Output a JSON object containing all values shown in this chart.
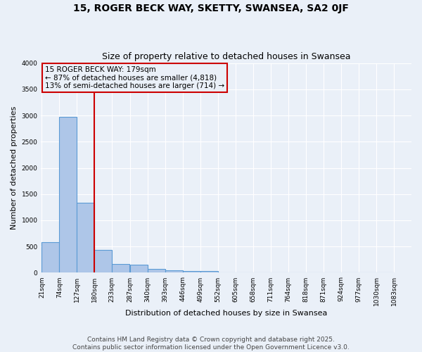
{
  "title": "15, ROGER BECK WAY, SKETTY, SWANSEA, SA2 0JF",
  "subtitle": "Size of property relative to detached houses in Swansea",
  "xlabel": "Distribution of detached houses by size in Swansea",
  "ylabel": "Number of detached properties",
  "bar_values": [
    590,
    2970,
    1340,
    430,
    165,
    155,
    70,
    40,
    30,
    30,
    0,
    0,
    0,
    0,
    0,
    0,
    0,
    0,
    0,
    0
  ],
  "bin_edges": [
    21,
    74,
    127,
    180,
    233,
    287,
    340,
    393,
    446,
    499,
    552,
    605,
    658,
    711,
    764,
    818,
    871,
    924,
    977,
    1030,
    1083
  ],
  "tick_labels": [
    "21sqm",
    "74sqm",
    "127sqm",
    "180sqm",
    "233sqm",
    "287sqm",
    "340sqm",
    "393sqm",
    "446sqm",
    "499sqm",
    "552sqm",
    "605sqm",
    "658sqm",
    "711sqm",
    "764sqm",
    "818sqm",
    "871sqm",
    "924sqm",
    "977sqm",
    "1030sqm",
    "1083sqm"
  ],
  "bar_color": "#aec6e8",
  "bar_edge_color": "#5b9bd5",
  "vline_x": 180,
  "vline_color": "#cc0000",
  "annotation_line1": "15 ROGER BECK WAY: 179sqm",
  "annotation_line2": "← 87% of detached houses are smaller (4,818)",
  "annotation_line3": "13% of semi-detached houses are larger (714) →",
  "annotation_bbox_color": "#cc0000",
  "ylim": [
    0,
    4000
  ],
  "yticks": [
    0,
    500,
    1000,
    1500,
    2000,
    2500,
    3000,
    3500,
    4000
  ],
  "bg_color": "#eaf0f8",
  "grid_color": "#ffffff",
  "footer_line1": "Contains HM Land Registry data © Crown copyright and database right 2025.",
  "footer_line2": "Contains public sector information licensed under the Open Government Licence v3.0.",
  "title_fontsize": 10,
  "subtitle_fontsize": 9,
  "axis_label_fontsize": 8,
  "tick_fontsize": 6.5,
  "annotation_fontsize": 7.5,
  "footer_fontsize": 6.5
}
